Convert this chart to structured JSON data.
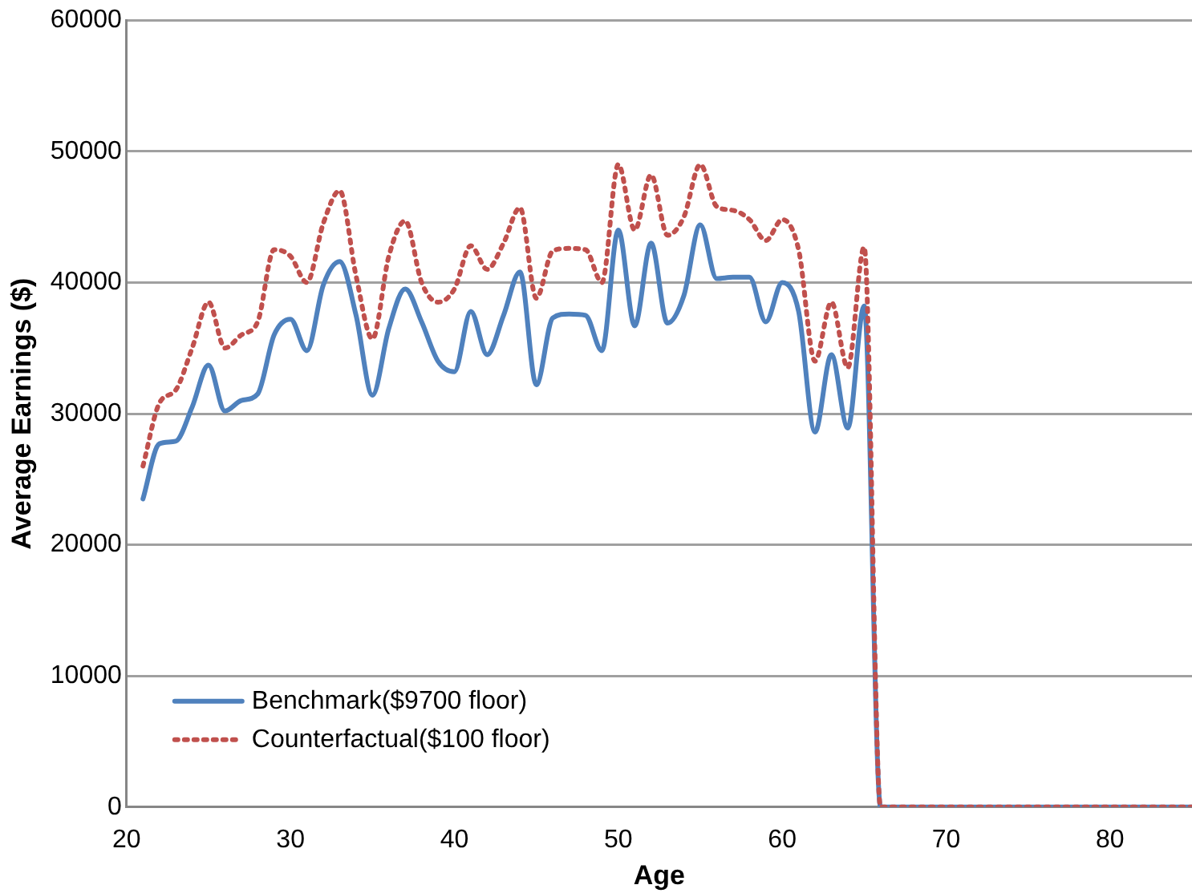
{
  "chart_data": {
    "type": "line",
    "xlabel": "Age",
    "ylabel": "Average Earnings ($)",
    "x": [
      21,
      22,
      23,
      24,
      25,
      26,
      27,
      28,
      29,
      30,
      31,
      32,
      33,
      34,
      35,
      36,
      37,
      38,
      39,
      40,
      41,
      42,
      43,
      44,
      45,
      46,
      47,
      48,
      49,
      50,
      51,
      52,
      53,
      54,
      55,
      56,
      57,
      58,
      59,
      60,
      61,
      62,
      63,
      64,
      65,
      66,
      67,
      68,
      69,
      70,
      71,
      72,
      73,
      74,
      75,
      76,
      77,
      78,
      79,
      80,
      81,
      82,
      83,
      84,
      85
    ],
    "series": [
      {
        "name": "Benchmark($9700 floor)",
        "color": "#4f81bd",
        "line_style": "solid",
        "values": [
          23500,
          27700,
          27900,
          30500,
          33700,
          30200,
          31000,
          31500,
          36000,
          37200,
          34800,
          39800,
          41600,
          37500,
          31400,
          36500,
          39500,
          37000,
          34000,
          33200,
          37800,
          34500,
          37500,
          40800,
          32200,
          37300,
          37600,
          37500,
          34800,
          44000,
          36700,
          43000,
          36900,
          39000,
          44400,
          40300,
          40400,
          40400,
          37000,
          40000,
          37800,
          28600,
          34500,
          28900,
          38200,
          0,
          0,
          0,
          0,
          0,
          0,
          0,
          0,
          0,
          0,
          0,
          0,
          0,
          0,
          0,
          0,
          0,
          0,
          0,
          0
        ]
      },
      {
        "name": "Counterfactual($100 floor)",
        "color": "#c0504d",
        "line_style": "dotted",
        "values": [
          26000,
          30800,
          31800,
          35000,
          38500,
          35000,
          36000,
          37000,
          42500,
          42000,
          40000,
          44500,
          47000,
          40500,
          35700,
          42000,
          44700,
          40000,
          38500,
          39500,
          42800,
          41000,
          43000,
          45700,
          38800,
          42400,
          42600,
          42500,
          40000,
          49000,
          44000,
          48200,
          43600,
          45000,
          49000,
          45800,
          45500,
          44800,
          43200,
          44800,
          42500,
          34000,
          38500,
          33500,
          42700,
          0,
          0,
          0,
          0,
          0,
          0,
          0,
          0,
          0,
          0,
          0,
          0,
          0,
          0,
          0,
          0,
          0,
          0,
          0,
          0
        ]
      }
    ],
    "xlim": [
      20,
      85
    ],
    "xticks": [
      20,
      30,
      40,
      50,
      60,
      70,
      80
    ],
    "ylim": [
      0,
      60000
    ],
    "yticks": [
      0,
      10000,
      20000,
      30000,
      40000,
      50000,
      60000
    ],
    "grid": "y",
    "legend": "bottom left",
    "marker": "none"
  }
}
